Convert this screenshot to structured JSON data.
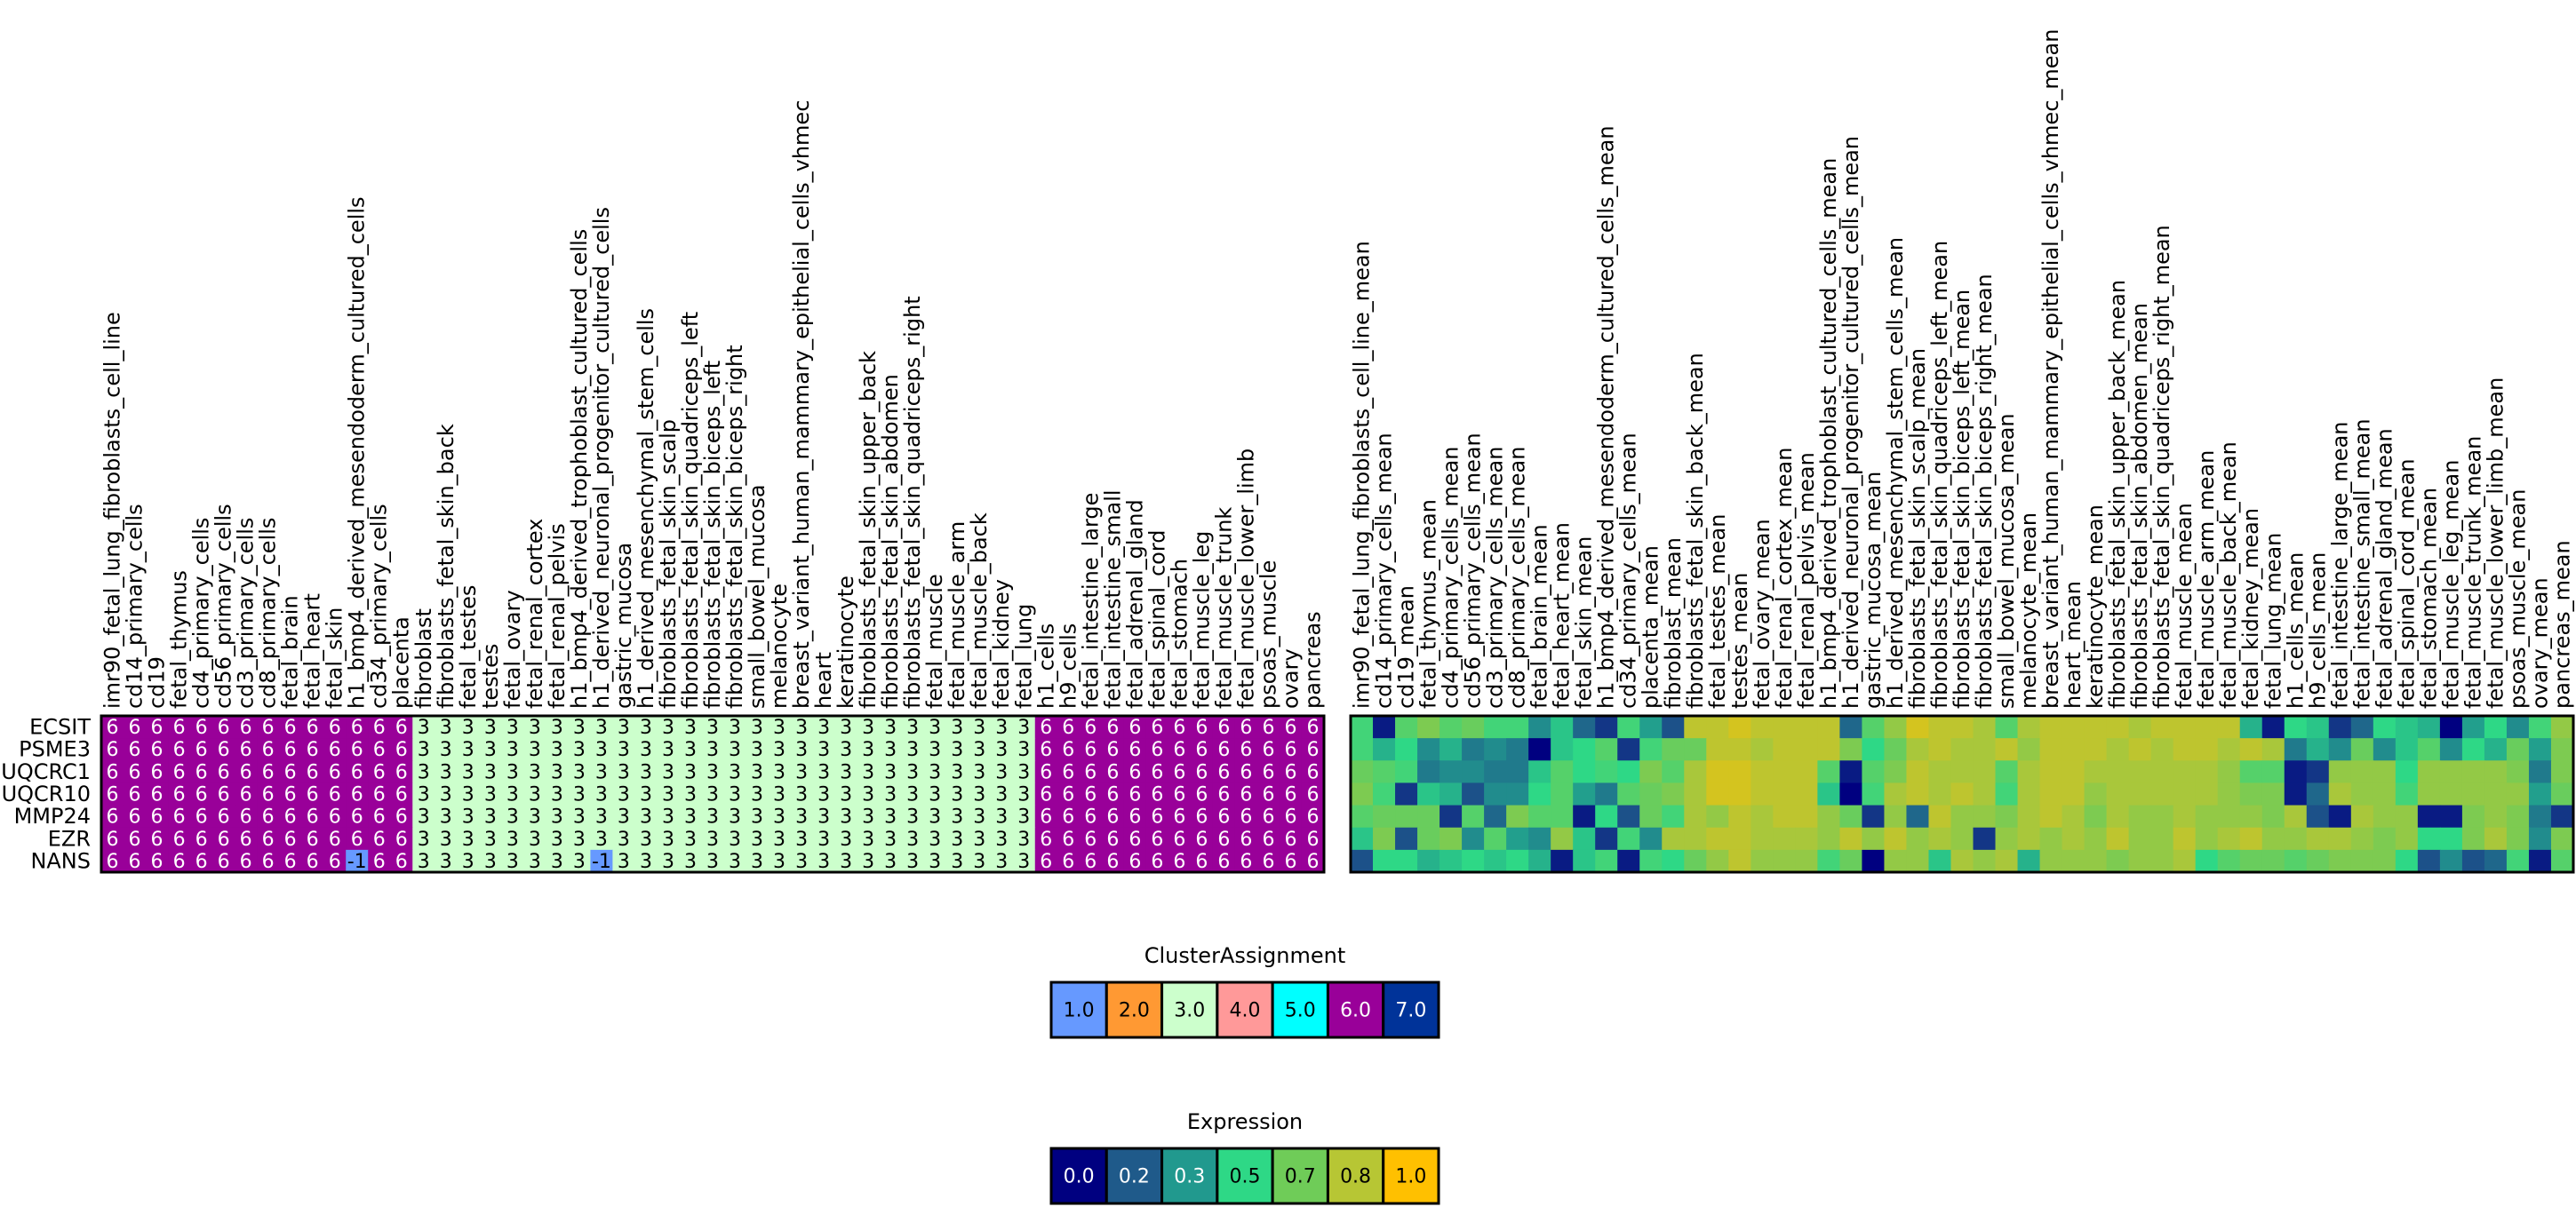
{
  "chart_data": [
    {
      "type": "heatmap",
      "title": "",
      "rows": [
        "ECSIT",
        "PSME3",
        "UQCRC1",
        "UQCR10",
        "MMP24",
        "EZR",
        "NANS"
      ],
      "columns": [
        "imr90_fetal_lung_fibroblasts_cell_line",
        "cd14_primary_cells",
        "cd19",
        "fetal_thymus",
        "cd4_primary_cells",
        "cd56_primary_cells",
        "cd3_primary_cells",
        "cd8_primary_cells",
        "fetal_brain",
        "fetal_heart",
        "fetal_skin",
        "h1_bmp4_derived_mesendoderm_cultured_cells",
        "cd34_primary_cells",
        "placenta",
        "fibroblast",
        "fibroblasts_fetal_skin_back",
        "fetal_testes",
        "testes",
        "fetal_ovary",
        "fetal_renal_cortex",
        "fetal_renal_pelvis",
        "h1_bmp4_derived_trophoblast_cultured_cells",
        "h1_derived_neuronal_progenitor_cultured_cells",
        "gastric_mucosa",
        "h1_derived_mesenchymal_stem_cells",
        "fibroblasts_fetal_skin_scalp",
        "fibroblasts_fetal_skin_quadriceps_left",
        "fibroblasts_fetal_skin_biceps_left",
        "fibroblasts_fetal_skin_biceps_right",
        "small_bowel_mucosa",
        "melanocyte",
        "breast_variant_human_mammary_epithelial_cells_vhmec",
        "heart",
        "keratinocyte",
        "fibroblasts_fetal_skin_upper_back",
        "fibroblasts_fetal_skin_abdomen",
        "fibroblasts_fetal_skin_quadriceps_right",
        "fetal_muscle",
        "fetal_muscle_arm",
        "fetal_muscle_back",
        "fetal_kidney",
        "fetal_lung",
        "h1_cells",
        "h9_cells",
        "fetal_intestine_large",
        "fetal_intestine_small",
        "fetal_adrenal_gland",
        "fetal_spinal_cord",
        "fetal_stomach",
        "fetal_muscle_leg",
        "fetal_muscle_trunk",
        "fetal_muscle_lower_limb",
        "psoas_muscle",
        "ovary",
        "pancreas"
      ],
      "cells": [
        [
          "6",
          "6",
          "6",
          "6",
          "6",
          "6",
          "6",
          "6",
          "6",
          "6",
          "6",
          "6",
          "6",
          "6",
          "3",
          "3",
          "3",
          "3",
          "3",
          "3",
          "3",
          "3",
          "3",
          "3",
          "3",
          "3",
          "3",
          "3",
          "3",
          "3",
          "3",
          "3",
          "3",
          "3",
          "3",
          "3",
          "3",
          "3",
          "3",
          "3",
          "3",
          "3",
          "6",
          "6",
          "6",
          "6",
          "6",
          "6",
          "6",
          "6",
          "6",
          "6",
          "6",
          "6",
          "6"
        ],
        [
          "6",
          "6",
          "6",
          "6",
          "6",
          "6",
          "6",
          "6",
          "6",
          "6",
          "6",
          "6",
          "6",
          "6",
          "3",
          "3",
          "3",
          "3",
          "3",
          "3",
          "3",
          "3",
          "3",
          "3",
          "3",
          "3",
          "3",
          "3",
          "3",
          "3",
          "3",
          "3",
          "3",
          "3",
          "3",
          "3",
          "3",
          "3",
          "3",
          "3",
          "3",
          "3",
          "6",
          "6",
          "6",
          "6",
          "6",
          "6",
          "6",
          "6",
          "6",
          "6",
          "6",
          "6",
          "6"
        ],
        [
          "6",
          "6",
          "6",
          "6",
          "6",
          "6",
          "6",
          "6",
          "6",
          "6",
          "6",
          "6",
          "6",
          "6",
          "3",
          "3",
          "3",
          "3",
          "3",
          "3",
          "3",
          "3",
          "3",
          "3",
          "3",
          "3",
          "3",
          "3",
          "3",
          "3",
          "3",
          "3",
          "3",
          "3",
          "3",
          "3",
          "3",
          "3",
          "3",
          "3",
          "3",
          "3",
          "6",
          "6",
          "6",
          "6",
          "6",
          "6",
          "6",
          "6",
          "6",
          "6",
          "6",
          "6",
          "6"
        ],
        [
          "6",
          "6",
          "6",
          "6",
          "6",
          "6",
          "6",
          "6",
          "6",
          "6",
          "6",
          "6",
          "6",
          "6",
          "3",
          "3",
          "3",
          "3",
          "3",
          "3",
          "3",
          "3",
          "3",
          "3",
          "3",
          "3",
          "3",
          "3",
          "3",
          "3",
          "3",
          "3",
          "3",
          "3",
          "3",
          "3",
          "3",
          "3",
          "3",
          "3",
          "3",
          "3",
          "6",
          "6",
          "6",
          "6",
          "6",
          "6",
          "6",
          "6",
          "6",
          "6",
          "6",
          "6",
          "6"
        ],
        [
          "6",
          "6",
          "6",
          "6",
          "6",
          "6",
          "6",
          "6",
          "6",
          "6",
          "6",
          "6",
          "6",
          "6",
          "3",
          "3",
          "3",
          "3",
          "3",
          "3",
          "3",
          "3",
          "3",
          "3",
          "3",
          "3",
          "3",
          "3",
          "3",
          "3",
          "3",
          "3",
          "3",
          "3",
          "3",
          "3",
          "3",
          "3",
          "3",
          "3",
          "3",
          "3",
          "6",
          "6",
          "6",
          "6",
          "6",
          "6",
          "6",
          "6",
          "6",
          "6",
          "6",
          "6",
          "6"
        ],
        [
          "6",
          "6",
          "6",
          "6",
          "6",
          "6",
          "6",
          "6",
          "6",
          "6",
          "6",
          "6",
          "6",
          "6",
          "3",
          "3",
          "3",
          "3",
          "3",
          "3",
          "3",
          "3",
          "3",
          "3",
          "3",
          "3",
          "3",
          "3",
          "3",
          "3",
          "3",
          "3",
          "3",
          "3",
          "3",
          "3",
          "3",
          "3",
          "3",
          "3",
          "3",
          "3",
          "6",
          "6",
          "6",
          "6",
          "6",
          "6",
          "6",
          "6",
          "6",
          "6",
          "6",
          "6",
          "6"
        ],
        [
          "6",
          "6",
          "6",
          "6",
          "6",
          "6",
          "6",
          "6",
          "6",
          "6",
          "6",
          "-1",
          "6",
          "6",
          "3",
          "3",
          "3",
          "3",
          "3",
          "3",
          "3",
          "3",
          "-1",
          "3",
          "3",
          "3",
          "3",
          "3",
          "3",
          "3",
          "3",
          "3",
          "3",
          "3",
          "3",
          "3",
          "3",
          "3",
          "3",
          "3",
          "3",
          "3",
          "6",
          "6",
          "6",
          "6",
          "6",
          "6",
          "6",
          "6",
          "6",
          "6",
          "6",
          "6",
          "6"
        ]
      ],
      "cell_colors": {
        "6": "#990099",
        "3": "#ccffcc",
        "-1": "#6699ff"
      },
      "cell_text_colors": {
        "6": "#ffffff",
        "3": "#000000",
        "-1": "#000000"
      }
    },
    {
      "type": "heatmap",
      "title": "",
      "rows": [
        "ECSIT",
        "PSME3",
        "UQCRC1",
        "UQCR10",
        "MMP24",
        "EZR",
        "NANS"
      ],
      "columns": [
        "imr90_fetal_lung_fibroblasts_cell_line_mean",
        "cd14_primary_cells_mean",
        "cd19_mean",
        "fetal_thymus_mean",
        "cd4_primary_cells_mean",
        "cd56_primary_cells_mean",
        "cd3_primary_cells_mean",
        "cd8_primary_cells_mean",
        "fetal_brain_mean",
        "fetal_heart_mean",
        "fetal_skin_mean",
        "h1_bmp4_derived_mesendoderm_cultured_cells_mean",
        "cd34_primary_cells_mean",
        "placenta_mean",
        "fibroblast_mean",
        "fibroblasts_fetal_skin_back_mean",
        "fetal_testes_mean",
        "testes_mean",
        "fetal_ovary_mean",
        "fetal_renal_cortex_mean",
        "fetal_renal_pelvis_mean",
        "h1_bmp4_derived_trophoblast_cultured_cells_mean",
        "h1_derived_neuronal_progenitor_cultured_cells_mean",
        "gastric_mucosa_mean",
        "h1_derived_mesenchymal_stem_cells_mean",
        "fibroblasts_fetal_skin_scalp_mean",
        "fibroblasts_fetal_skin_quadriceps_left_mean",
        "fibroblasts_fetal_skin_biceps_left_mean",
        "fibroblasts_fetal_skin_biceps_right_mean",
        "small_bowel_mucosa_mean",
        "melanocyte_mean",
        "breast_variant_human_mammary_epithelial_cells_vhmec_mean",
        "heart_mean",
        "keratinocyte_mean",
        "fibroblasts_fetal_skin_upper_back_mean",
        "fibroblasts_fetal_skin_abdomen_mean",
        "fibroblasts_fetal_skin_quadriceps_right_mean",
        "fetal_muscle_mean",
        "fetal_muscle_arm_mean",
        "fetal_muscle_back_mean",
        "fetal_kidney_mean",
        "fetal_lung_mean",
        "h1_cells_mean",
        "h9_cells_mean",
        "fetal_intestine_large_mean",
        "fetal_intestine_small_mean",
        "fetal_adrenal_gland_mean",
        "fetal_spinal_cord_mean",
        "fetal_stomach_mean",
        "fetal_muscle_leg_mean",
        "fetal_muscle_trunk_mean",
        "fetal_muscle_lower_limb_mean",
        "psoas_muscle_mean",
        "ovary_mean",
        "pancreas_mean"
      ],
      "values": [
        [
          0.55,
          0.05,
          0.6,
          0.7,
          0.6,
          0.65,
          0.55,
          0.55,
          0.3,
          0.45,
          0.2,
          0.1,
          0.55,
          0.35,
          0.15,
          0.85,
          0.85,
          0.9,
          0.85,
          0.85,
          0.85,
          0.85,
          0.2,
          0.6,
          0.75,
          0.9,
          0.85,
          0.85,
          0.8,
          0.6,
          0.8,
          0.85,
          0.85,
          0.85,
          0.85,
          0.8,
          0.85,
          0.85,
          0.85,
          0.85,
          0.4,
          0.05,
          0.5,
          0.45,
          0.1,
          0.2,
          0.5,
          0.45,
          0.4,
          0.0,
          0.35,
          0.5,
          0.3,
          0.55,
          0.75
        ],
        [
          0.55,
          0.4,
          0.5,
          0.3,
          0.4,
          0.25,
          0.3,
          0.25,
          0.0,
          0.45,
          0.5,
          0.6,
          0.1,
          0.55,
          0.65,
          0.65,
          0.85,
          0.85,
          0.8,
          0.85,
          0.85,
          0.85,
          0.7,
          0.5,
          0.65,
          0.8,
          0.85,
          0.8,
          0.8,
          0.85,
          0.75,
          0.85,
          0.85,
          0.85,
          0.8,
          0.85,
          0.8,
          0.85,
          0.85,
          0.8,
          0.85,
          0.8,
          0.25,
          0.4,
          0.3,
          0.65,
          0.3,
          0.45,
          0.6,
          0.3,
          0.5,
          0.4,
          0.65,
          0.35,
          0.7
        ],
        [
          0.65,
          0.6,
          0.55,
          0.25,
          0.3,
          0.3,
          0.25,
          0.25,
          0.45,
          0.6,
          0.5,
          0.55,
          0.5,
          0.7,
          0.6,
          0.8,
          0.9,
          0.9,
          0.85,
          0.85,
          0.85,
          0.6,
          0.05,
          0.6,
          0.7,
          0.85,
          0.8,
          0.8,
          0.8,
          0.6,
          0.8,
          0.85,
          0.85,
          0.8,
          0.8,
          0.8,
          0.8,
          0.8,
          0.8,
          0.75,
          0.6,
          0.6,
          0.05,
          0.1,
          0.75,
          0.75,
          0.75,
          0.5,
          0.75,
          0.75,
          0.75,
          0.75,
          0.7,
          0.25,
          0.7
        ],
        [
          0.7,
          0.55,
          0.1,
          0.45,
          0.4,
          0.15,
          0.3,
          0.3,
          0.5,
          0.6,
          0.35,
          0.25,
          0.6,
          0.65,
          0.7,
          0.8,
          0.9,
          0.9,
          0.85,
          0.85,
          0.85,
          0.45,
          0.0,
          0.55,
          0.8,
          0.85,
          0.8,
          0.85,
          0.8,
          0.55,
          0.8,
          0.85,
          0.85,
          0.75,
          0.8,
          0.8,
          0.8,
          0.8,
          0.8,
          0.75,
          0.7,
          0.7,
          0.05,
          0.2,
          0.8,
          0.75,
          0.75,
          0.55,
          0.75,
          0.75,
          0.75,
          0.75,
          0.75,
          0.35,
          0.65
        ],
        [
          0.6,
          0.65,
          0.65,
          0.65,
          0.1,
          0.6,
          0.2,
          0.7,
          0.6,
          0.6,
          0.05,
          0.5,
          0.15,
          0.65,
          0.55,
          0.8,
          0.75,
          0.85,
          0.8,
          0.85,
          0.85,
          0.75,
          0.65,
          0.1,
          0.75,
          0.2,
          0.85,
          0.75,
          0.75,
          0.7,
          0.8,
          0.85,
          0.8,
          0.7,
          0.8,
          0.75,
          0.75,
          0.8,
          0.75,
          0.75,
          0.75,
          0.7,
          0.8,
          0.15,
          0.05,
          0.8,
          0.75,
          0.75,
          0.05,
          0.05,
          0.7,
          0.75,
          0.7,
          0.25,
          0.1
        ],
        [
          0.45,
          0.7,
          0.15,
          0.65,
          0.7,
          0.3,
          0.6,
          0.35,
          0.3,
          0.75,
          0.45,
          0.1,
          0.55,
          0.3,
          0.8,
          0.8,
          0.85,
          0.85,
          0.8,
          0.8,
          0.8,
          0.75,
          0.85,
          0.75,
          0.85,
          0.75,
          0.8,
          0.75,
          0.1,
          0.75,
          0.8,
          0.75,
          0.8,
          0.75,
          0.85,
          0.75,
          0.75,
          0.85,
          0.75,
          0.8,
          0.85,
          0.75,
          0.75,
          0.8,
          0.8,
          0.75,
          0.7,
          0.75,
          0.5,
          0.5,
          0.7,
          0.8,
          0.7,
          0.3,
          0.7
        ],
        [
          0.15,
          0.5,
          0.5,
          0.4,
          0.45,
          0.5,
          0.45,
          0.5,
          0.4,
          0.05,
          0.45,
          0.55,
          0.05,
          0.55,
          0.5,
          0.65,
          0.75,
          0.85,
          0.75,
          0.75,
          0.75,
          0.55,
          0.65,
          0.0,
          0.75,
          0.75,
          0.45,
          0.8,
          0.75,
          0.8,
          0.4,
          0.75,
          0.75,
          0.75,
          0.7,
          0.75,
          0.75,
          0.8,
          0.5,
          0.6,
          0.65,
          0.65,
          0.6,
          0.65,
          0.7,
          0.7,
          0.7,
          0.5,
          0.15,
          0.3,
          0.15,
          0.2,
          0.55,
          0.05,
          0.6
        ]
      ],
      "colorscale": [
        "#000080",
        "#1f5a8a",
        "#21998e",
        "#2ed886",
        "#6fcc58",
        "#b7c634",
        "#ffc000"
      ]
    }
  ],
  "legends": [
    {
      "title": "ClusterAssignment",
      "items": [
        {
          "label": "1.0",
          "color": "#6699ff",
          "text_color": "#000000"
        },
        {
          "label": "2.0",
          "color": "#ff9933",
          "text_color": "#000000"
        },
        {
          "label": "3.0",
          "color": "#ccffcc",
          "text_color": "#000000"
        },
        {
          "label": "4.0",
          "color": "#ff9999",
          "text_color": "#000000"
        },
        {
          "label": "5.0",
          "color": "#00ffff",
          "text_color": "#000000"
        },
        {
          "label": "6.0",
          "color": "#990099",
          "text_color": "#ffffff"
        },
        {
          "label": "7.0",
          "color": "#003399",
          "text_color": "#ffffff"
        }
      ]
    },
    {
      "title": "Expression",
      "items": [
        {
          "label": "0.0",
          "color": "#000080",
          "text_color": "#ffffff"
        },
        {
          "label": "0.2",
          "color": "#1f5a8a",
          "text_color": "#ffffff"
        },
        {
          "label": "0.3",
          "color": "#21998e",
          "text_color": "#ffffff"
        },
        {
          "label": "0.5",
          "color": "#2ed886",
          "text_color": "#000000"
        },
        {
          "label": "0.7",
          "color": "#6fcc58",
          "text_color": "#000000"
        },
        {
          "label": "0.8",
          "color": "#b7c634",
          "text_color": "#000000"
        },
        {
          "label": "1.0",
          "color": "#ffc000",
          "text_color": "#000000"
        }
      ]
    }
  ]
}
